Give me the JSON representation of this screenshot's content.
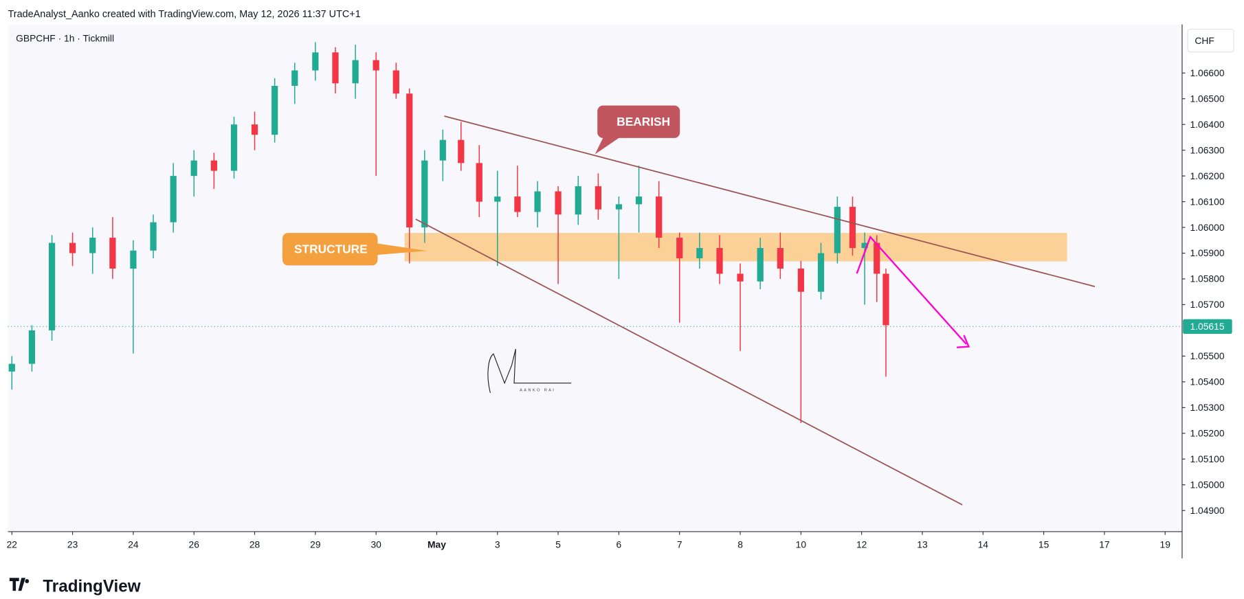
{
  "header": {
    "attribution": "TradeAnalyst_Aanko created with TradingView.com, May 12, 2026 11:37 UTC+1",
    "footer": "TradingView"
  },
  "chart_data": {
    "type": "candlestick",
    "title": "GBPCHF · 1h · Tickmill",
    "currency": "CHF",
    "last_price": 1.05615,
    "annotations": {
      "bearish": "BEARISH",
      "structure": "STRUCTURE",
      "signature": "AANKO RAI"
    },
    "up_color": "#22ab94",
    "down_color": "#f23645",
    "xlim": [
      -0.065,
      19.28
    ],
    "xticks": [
      {
        "value": 0,
        "label": "22"
      },
      {
        "value": 1,
        "label": "23"
      },
      {
        "value": 2,
        "label": "24"
      },
      {
        "value": 3,
        "label": "26"
      },
      {
        "value": 4,
        "label": "28"
      },
      {
        "value": 5,
        "label": "29"
      },
      {
        "value": 6,
        "label": "30"
      },
      {
        "value": 7,
        "label": "May"
      },
      {
        "value": 8,
        "label": "3"
      },
      {
        "value": 9,
        "label": "5"
      },
      {
        "value": 10,
        "label": "6"
      },
      {
        "value": 11,
        "label": "7"
      },
      {
        "value": 12,
        "label": "8"
      },
      {
        "value": 13,
        "label": "10"
      },
      {
        "value": 14,
        "label": "12"
      },
      {
        "value": 15,
        "label": "13"
      },
      {
        "value": 16,
        "label": "14"
      },
      {
        "value": 17,
        "label": "15"
      },
      {
        "value": 18,
        "label": "17"
      },
      {
        "value": 19,
        "label": "19"
      }
    ],
    "ylim": [
      1.04818,
      1.06789
    ],
    "yticks": [
      {
        "value": 1.049,
        "label": "1.04900"
      },
      {
        "value": 1.05,
        "label": "1.05000"
      },
      {
        "value": 1.051,
        "label": "1.05100"
      },
      {
        "value": 1.052,
        "label": "1.05200"
      },
      {
        "value": 1.053,
        "label": "1.05300"
      },
      {
        "value": 1.054,
        "label": "1.05400"
      },
      {
        "value": 1.055,
        "label": "1.05500"
      },
      {
        "value": 1.057,
        "label": "1.05700"
      },
      {
        "value": 1.058,
        "label": "1.05800"
      },
      {
        "value": 1.059,
        "label": "1.05900"
      },
      {
        "value": 1.06,
        "label": "1.06000"
      },
      {
        "value": 1.061,
        "label": "1.06100"
      },
      {
        "value": 1.062,
        "label": "1.06200"
      },
      {
        "value": 1.063,
        "label": "1.06300"
      },
      {
        "value": 1.064,
        "label": "1.06400"
      },
      {
        "value": 1.065,
        "label": "1.06500"
      },
      {
        "value": 1.066,
        "label": "1.06600"
      }
    ],
    "x": [
      0,
      0.33,
      0.66,
      1,
      1.33,
      1.66,
      2,
      2.33,
      2.66,
      3,
      3.33,
      3.66,
      4,
      4.33,
      4.66,
      5,
      5.33,
      5.66,
      6,
      6.33,
      6.55,
      6.8,
      7.1,
      7.4,
      7.7,
      8,
      8.33,
      8.66,
      9,
      9.33,
      9.66,
      10,
      10.33,
      10.66,
      11,
      11.33,
      11.66,
      12,
      12.33,
      12.66,
      13,
      13.33,
      13.6,
      13.85,
      14.05,
      14.25,
      14.4
    ],
    "open": [
      1.0544,
      1.0547,
      1.056,
      1.0594,
      1.059,
      1.0596,
      1.0584,
      1.0591,
      1.0602,
      1.062,
      1.0626,
      1.0622,
      1.064,
      1.0636,
      1.0655,
      1.0661,
      1.0668,
      1.0656,
      1.0665,
      1.0661,
      1.0652,
      1.06,
      1.0626,
      1.0634,
      1.0625,
      1.061,
      1.0612,
      1.0606,
      1.0614,
      1.0605,
      1.0616,
      1.0607,
      1.0609,
      1.0612,
      1.0596,
      1.0588,
      1.0592,
      1.0582,
      1.0579,
      1.0592,
      1.0584,
      1.0575,
      1.059,
      1.0608,
      1.0592,
      1.0594,
      1.0582
    ],
    "high": [
      1.055,
      1.0562,
      1.0597,
      1.0598,
      1.06,
      1.0604,
      1.0595,
      1.0605,
      1.0625,
      1.063,
      1.0629,
      1.0643,
      1.0645,
      1.0658,
      1.0664,
      1.0672,
      1.067,
      1.0671,
      1.0668,
      1.0664,
      1.0654,
      1.063,
      1.0638,
      1.0641,
      1.0632,
      1.0622,
      1.0624,
      1.0618,
      1.0616,
      1.062,
      1.0621,
      1.0612,
      1.0624,
      1.0618,
      1.0598,
      1.0598,
      1.0597,
      1.0586,
      1.0596,
      1.0598,
      1.0587,
      1.0594,
      1.0612,
      1.0612,
      1.0598,
      1.0597,
      1.0584
    ],
    "low": [
      1.0537,
      1.0544,
      1.0556,
      1.0585,
      1.0582,
      1.058,
      1.0551,
      1.0588,
      1.0598,
      1.0612,
      1.0615,
      1.0619,
      1.063,
      1.0633,
      1.0648,
      1.0657,
      1.0652,
      1.065,
      1.062,
      1.065,
      1.0586,
      1.0594,
      1.0618,
      1.0622,
      1.0604,
      1.0585,
      1.0604,
      1.06,
      1.0578,
      1.0601,
      1.0603,
      1.058,
      1.0598,
      1.0592,
      1.0563,
      1.0584,
      1.0578,
      1.0552,
      1.0576,
      1.058,
      1.0524,
      1.0572,
      1.0586,
      1.0589,
      1.057,
      1.0571,
      1.0542
    ],
    "close": [
      1.0547,
      1.056,
      1.0594,
      1.059,
      1.0596,
      1.0584,
      1.0591,
      1.0602,
      1.062,
      1.0626,
      1.0622,
      1.064,
      1.0636,
      1.0655,
      1.0661,
      1.0668,
      1.0656,
      1.0665,
      1.0661,
      1.0652,
      1.06,
      1.0626,
      1.0634,
      1.0625,
      1.061,
      1.0612,
      1.0606,
      1.0614,
      1.0605,
      1.0616,
      1.0607,
      1.0609,
      1.0612,
      1.0596,
      1.0588,
      1.0592,
      1.0582,
      1.0579,
      1.0592,
      1.0584,
      1.0575,
      1.059,
      1.0608,
      1.0592,
      1.0594,
      1.0582,
      1.0562
    ]
  }
}
